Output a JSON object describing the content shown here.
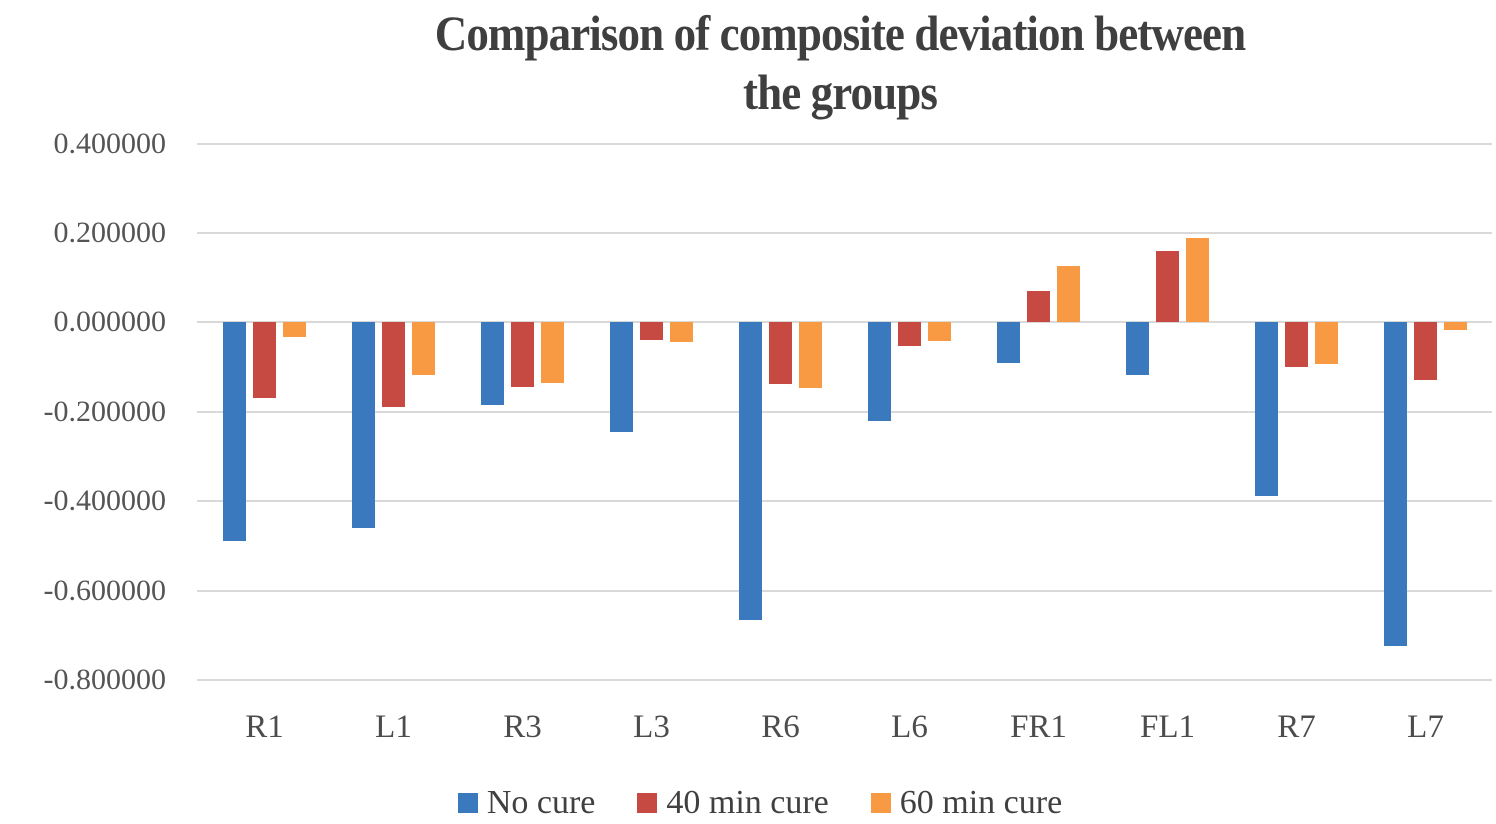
{
  "chart_data": {
    "type": "bar",
    "title": "Comparison of composite deviation between the groups",
    "title_lines": [
      "Comparison of composite deviation between",
      "the groups"
    ],
    "categories": [
      "R1",
      "L1",
      "R3",
      "L3",
      "R6",
      "L6",
      "FR1",
      "FL1",
      "R7",
      "L7"
    ],
    "series": [
      {
        "name": "No cure",
        "color": "#3b79be",
        "values": [
          -0.49,
          -0.46,
          -0.185,
          -0.245,
          -0.665,
          -0.22,
          -0.09,
          -0.118,
          -0.388,
          -0.725
        ]
      },
      {
        "name": "40 min cure",
        "color": "#c64a42",
        "values": [
          -0.17,
          -0.19,
          -0.144,
          -0.04,
          -0.137,
          -0.053,
          0.069,
          0.16,
          -0.1,
          -0.128
        ]
      },
      {
        "name": "60 min cure",
        "color": "#f89943",
        "values": [
          -0.032,
          -0.117,
          -0.135,
          -0.044,
          -0.148,
          -0.042,
          0.125,
          0.188,
          -0.094,
          -0.018
        ]
      }
    ],
    "ylim": [
      -0.8,
      0.4
    ],
    "ytick_step": 0.2,
    "ytick_labels": [
      "0.400000",
      "0.200000",
      "0.000000",
      "-0.200000",
      "-0.400000",
      "-0.600000",
      "-0.800000"
    ],
    "xlabel": "",
    "ylabel": "",
    "grid": true,
    "legend_position": "bottom"
  },
  "colors": {
    "title_text": "#3f3f3f",
    "axis_text": "#555555",
    "gridline": "#d9d9d9",
    "background": "#ffffff"
  }
}
